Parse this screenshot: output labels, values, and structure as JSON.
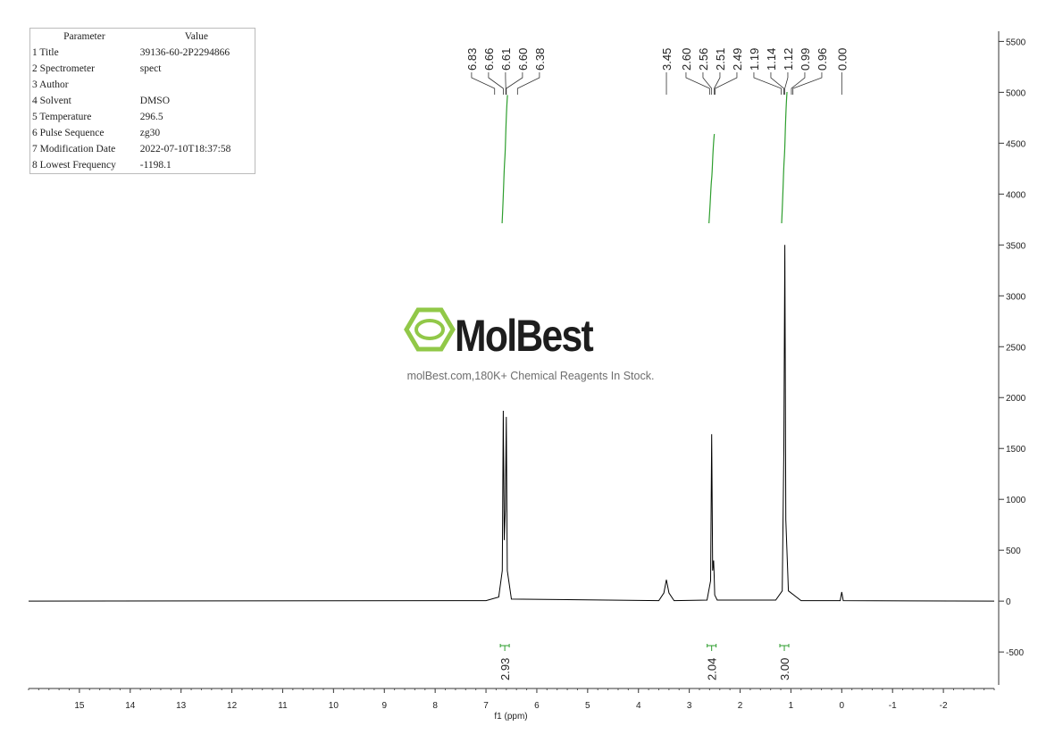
{
  "chart_data": {
    "type": "nmr-spectrum",
    "x_label": "f1 (ppm)",
    "xlim": [
      16,
      -3
    ],
    "xticks": [
      15,
      14,
      13,
      12,
      11,
      10,
      9,
      8,
      7,
      6,
      5,
      4,
      3,
      2,
      1,
      0,
      -1,
      -2
    ],
    "ylim": [
      -850,
      5600
    ],
    "yticks": [
      -500,
      0,
      500,
      1000,
      1500,
      2000,
      2500,
      3000,
      3500,
      4000,
      4500,
      5000,
      5500
    ],
    "color": "#000000",
    "integral_color": "#2e9e2e",
    "x": [
      16,
      7.0,
      6.75,
      6.68,
      6.66,
      6.64,
      6.62,
      6.6,
      6.58,
      6.5,
      3.6,
      3.5,
      3.45,
      3.4,
      3.3,
      2.65,
      2.58,
      2.56,
      2.54,
      2.52,
      2.51,
      2.5,
      2.45,
      1.3,
      1.17,
      1.14,
      1.12,
      1.1,
      1.05,
      0.8,
      0.03,
      0.0,
      -0.03,
      -3
    ],
    "values": [
      0,
      5,
      40,
      300,
      1870,
      600,
      900,
      1810,
      300,
      20,
      5,
      80,
      210,
      80,
      5,
      10,
      200,
      1640,
      300,
      400,
      250,
      60,
      10,
      10,
      100,
      1500,
      3500,
      800,
      100,
      5,
      5,
      90,
      5,
      0
    ],
    "peaks": [
      {
        "value": 6.83,
        "label": "6.83"
      },
      {
        "value": 6.66,
        "label": "6.66"
      },
      {
        "value": 6.61,
        "label": "6.61"
      },
      {
        "value": 6.6,
        "label": "6.60"
      },
      {
        "value": 6.38,
        "label": "6.38"
      },
      {
        "value": 3.45,
        "label": "3.45"
      },
      {
        "value": 2.6,
        "label": "2.60"
      },
      {
        "value": 2.56,
        "label": "2.56"
      },
      {
        "value": 2.51,
        "label": "2.51"
      },
      {
        "value": 2.49,
        "label": "2.49"
      },
      {
        "value": 1.19,
        "label": "1.19"
      },
      {
        "value": 1.14,
        "label": "1.14"
      },
      {
        "value": 1.12,
        "label": "1.12"
      },
      {
        "value": 0.99,
        "label": "0.99"
      },
      {
        "value": 0.96,
        "label": "0.96"
      },
      {
        "value": 0,
        "label": "0.00"
      }
    ],
    "integrals": [
      {
        "x": 6.63,
        "value": 2.93
      },
      {
        "x": 2.56,
        "value": 2.04
      },
      {
        "x": 1.13,
        "value": {
          "value": 3,
          "label": "3.00"
        }
      }
    ]
  },
  "parameters": {
    "header": [
      "Parameter",
      "Value"
    ],
    "rows": [
      [
        "1 Title",
        "39136-60-2P2294866"
      ],
      [
        "2 Spectrometer",
        "spect"
      ],
      [
        "3 Author",
        ""
      ],
      [
        "4 Solvent",
        "DMSO"
      ],
      [
        "5 Temperature",
        "296.5"
      ],
      [
        "6 Pulse Sequence",
        "zg30"
      ],
      [
        "7 Modification Date",
        "2022-07-10T18:37:58"
      ],
      [
        "8 Lowest Frequency",
        "-1198.1"
      ]
    ]
  },
  "watermark": {
    "brand": "MolBest",
    "tagline": "molBest.com,180K+ Chemical Reagents In Stock."
  }
}
